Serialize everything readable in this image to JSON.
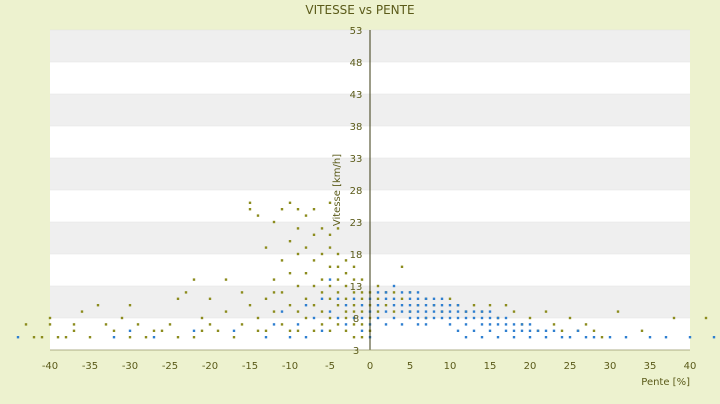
{
  "chart_data": {
    "type": "scatter",
    "title": "VITESSE vs PENTE",
    "xlabel": "Pente [%]",
    "ylabel": "Vitesse [km/h]",
    "xlim": [
      -40,
      40
    ],
    "ylim": [
      3,
      53
    ],
    "xticks": [
      -40,
      -35,
      -30,
      -25,
      -20,
      -15,
      -10,
      -5,
      0,
      5,
      10,
      15,
      20,
      25,
      30,
      35,
      40
    ],
    "yticks": [
      3,
      8,
      13,
      18,
      23,
      28,
      33,
      38,
      43,
      48,
      53
    ],
    "grid": true,
    "legend": "none",
    "colors": {
      "plot_band_light": "#ffffff",
      "plot_band_dark": "#efefef",
      "page_background": "#edf2cf",
      "text": "#5b5b1a",
      "series_olive": "#8c8c1e",
      "series_blue": "#2f7fd0"
    },
    "series": [
      {
        "color": "#8c8c1e",
        "points": [
          [
            -43,
            7
          ],
          [
            -42,
            5
          ],
          [
            -40,
            8
          ],
          [
            -40,
            7
          ],
          [
            -39,
            5
          ],
          [
            -38,
            5
          ],
          [
            -37,
            6
          ],
          [
            -37,
            7
          ],
          [
            -36,
            9
          ],
          [
            -35,
            5
          ],
          [
            -34,
            10
          ],
          [
            -33,
            7
          ],
          [
            -32,
            6
          ],
          [
            -31,
            8
          ],
          [
            -30,
            10
          ],
          [
            -29,
            7
          ],
          [
            -28,
            5
          ],
          [
            -27,
            6
          ],
          [
            -26,
            6
          ],
          [
            -25,
            7
          ],
          [
            -24,
            11
          ],
          [
            -24,
            5
          ],
          [
            -23,
            12
          ],
          [
            -22,
            14
          ],
          [
            -21,
            6
          ],
          [
            -21,
            8
          ],
          [
            -20,
            11
          ],
          [
            -20,
            7
          ],
          [
            -19,
            6
          ],
          [
            -18,
            14
          ],
          [
            -18,
            9
          ],
          [
            -17,
            5
          ],
          [
            -16,
            12
          ],
          [
            -16,
            7
          ],
          [
            -15,
            26
          ],
          [
            -15,
            10
          ],
          [
            -15,
            25
          ],
          [
            -14,
            24
          ],
          [
            -14,
            8
          ],
          [
            -13,
            19
          ],
          [
            -13,
            11
          ],
          [
            -13,
            6
          ],
          [
            -12,
            23
          ],
          [
            -12,
            14
          ],
          [
            -12,
            9
          ],
          [
            -11,
            25
          ],
          [
            -11,
            17
          ],
          [
            -11,
            12
          ],
          [
            -11,
            7
          ],
          [
            -10,
            26
          ],
          [
            -10,
            20
          ],
          [
            -10,
            15
          ],
          [
            -10,
            10
          ],
          [
            -10,
            6
          ],
          [
            -9,
            25
          ],
          [
            -9,
            22
          ],
          [
            -9,
            18
          ],
          [
            -9,
            13
          ],
          [
            -9,
            9
          ],
          [
            -9,
            6
          ],
          [
            -8,
            24
          ],
          [
            -8,
            19
          ],
          [
            -8,
            15
          ],
          [
            -8,
            11
          ],
          [
            -8,
            8
          ],
          [
            -7,
            25
          ],
          [
            -7,
            21
          ],
          [
            -7,
            17
          ],
          [
            -7,
            13
          ],
          [
            -7,
            10
          ],
          [
            -7,
            6
          ],
          [
            -6,
            22
          ],
          [
            -6,
            18
          ],
          [
            -6,
            14
          ],
          [
            -6,
            12
          ],
          [
            -6,
            9
          ],
          [
            -6,
            7
          ],
          [
            -5,
            26
          ],
          [
            -5,
            21
          ],
          [
            -5,
            19
          ],
          [
            -5,
            16
          ],
          [
            -5,
            13
          ],
          [
            -5,
            11
          ],
          [
            -5,
            8
          ],
          [
            -5,
            6
          ],
          [
            -4,
            22
          ],
          [
            -4,
            18
          ],
          [
            -4,
            16
          ],
          [
            -4,
            14
          ],
          [
            -4,
            12
          ],
          [
            -4,
            10
          ],
          [
            -4,
            7
          ],
          [
            -3,
            17
          ],
          [
            -3,
            15
          ],
          [
            -3,
            13
          ],
          [
            -3,
            11
          ],
          [
            -3,
            9
          ],
          [
            -3,
            8
          ],
          [
            -3,
            6
          ],
          [
            -2,
            16
          ],
          [
            -2,
            14
          ],
          [
            -2,
            12
          ],
          [
            -2,
            10
          ],
          [
            -2,
            9
          ],
          [
            -2,
            7
          ],
          [
            -2,
            5
          ],
          [
            -1,
            14
          ],
          [
            -1,
            12
          ],
          [
            -1,
            11
          ],
          [
            -1,
            9
          ],
          [
            -1,
            7
          ],
          [
            -1,
            5
          ],
          [
            0,
            12
          ],
          [
            0,
            10
          ],
          [
            0,
            8
          ],
          [
            0,
            6
          ],
          [
            1,
            13
          ],
          [
            1,
            11
          ],
          [
            1,
            9
          ],
          [
            2,
            12
          ],
          [
            2,
            10
          ],
          [
            3,
            12
          ],
          [
            3,
            9
          ],
          [
            4,
            11
          ],
          [
            4,
            16
          ],
          [
            5,
            12
          ],
          [
            5,
            9
          ],
          [
            6,
            10
          ],
          [
            7,
            11
          ],
          [
            7,
            8
          ],
          [
            8,
            10
          ],
          [
            9,
            9
          ],
          [
            10,
            11
          ],
          [
            11,
            10
          ],
          [
            12,
            9
          ],
          [
            13,
            10
          ],
          [
            14,
            9
          ],
          [
            15,
            10
          ],
          [
            16,
            8
          ],
          [
            17,
            10
          ],
          [
            18,
            9
          ],
          [
            19,
            7
          ],
          [
            20,
            8
          ],
          [
            21,
            6
          ],
          [
            22,
            9
          ],
          [
            23,
            7
          ],
          [
            24,
            6
          ],
          [
            25,
            8
          ],
          [
            26,
            6
          ],
          [
            27,
            7
          ],
          [
            28,
            6
          ],
          [
            29,
            5
          ],
          [
            31,
            9
          ],
          [
            34,
            6
          ],
          [
            38,
            8
          ],
          [
            42,
            8
          ],
          [
            -41,
            5
          ],
          [
            -30,
            5
          ],
          [
            -22,
            5
          ],
          [
            -14,
            6
          ],
          [
            -12,
            12
          ]
        ]
      },
      {
        "color": "#2f7fd0",
        "points": [
          [
            -44,
            5
          ],
          [
            -32,
            5
          ],
          [
            -30,
            6
          ],
          [
            -27,
            5
          ],
          [
            -22,
            6
          ],
          [
            -17,
            6
          ],
          [
            -13,
            5
          ],
          [
            -12,
            7
          ],
          [
            -11,
            9
          ],
          [
            -10,
            5
          ],
          [
            -9,
            7
          ],
          [
            -8,
            10
          ],
          [
            -8,
            5
          ],
          [
            -7,
            8
          ],
          [
            -6,
            11
          ],
          [
            -6,
            6
          ],
          [
            -5,
            9
          ],
          [
            -5,
            14
          ],
          [
            -4,
            8
          ],
          [
            -4,
            11
          ],
          [
            -3,
            7
          ],
          [
            -3,
            10
          ],
          [
            -2,
            8
          ],
          [
            -2,
            11
          ],
          [
            -1,
            6
          ],
          [
            -1,
            8
          ],
          [
            -1,
            10
          ],
          [
            0,
            5
          ],
          [
            0,
            7
          ],
          [
            0,
            9
          ],
          [
            0,
            11
          ],
          [
            1,
            8
          ],
          [
            1,
            10
          ],
          [
            1,
            12
          ],
          [
            2,
            7
          ],
          [
            2,
            9
          ],
          [
            2,
            11
          ],
          [
            2,
            12
          ],
          [
            3,
            8
          ],
          [
            3,
            10
          ],
          [
            3,
            11
          ],
          [
            3,
            13
          ],
          [
            4,
            7
          ],
          [
            4,
            9
          ],
          [
            4,
            10
          ],
          [
            4,
            12
          ],
          [
            5,
            8
          ],
          [
            5,
            9
          ],
          [
            5,
            10
          ],
          [
            5,
            11
          ],
          [
            5,
            12
          ],
          [
            6,
            7
          ],
          [
            6,
            8
          ],
          [
            6,
            9
          ],
          [
            6,
            10
          ],
          [
            6,
            11
          ],
          [
            6,
            12
          ],
          [
            7,
            7
          ],
          [
            7,
            8
          ],
          [
            7,
            9
          ],
          [
            7,
            10
          ],
          [
            7,
            11
          ],
          [
            8,
            8
          ],
          [
            8,
            9
          ],
          [
            8,
            10
          ],
          [
            8,
            11
          ],
          [
            9,
            8
          ],
          [
            9,
            9
          ],
          [
            9,
            10
          ],
          [
            9,
            11
          ],
          [
            10,
            7
          ],
          [
            10,
            8
          ],
          [
            10,
            9
          ],
          [
            10,
            10
          ],
          [
            11,
            6
          ],
          [
            11,
            8
          ],
          [
            11,
            9
          ],
          [
            11,
            10
          ],
          [
            12,
            5
          ],
          [
            12,
            7
          ],
          [
            12,
            8
          ],
          [
            12,
            9
          ],
          [
            13,
            6
          ],
          [
            13,
            8
          ],
          [
            13,
            9
          ],
          [
            14,
            5
          ],
          [
            14,
            7
          ],
          [
            14,
            8
          ],
          [
            14,
            9
          ],
          [
            15,
            6
          ],
          [
            15,
            7
          ],
          [
            15,
            8
          ],
          [
            15,
            9
          ],
          [
            16,
            5
          ],
          [
            16,
            7
          ],
          [
            16,
            8
          ],
          [
            17,
            6
          ],
          [
            17,
            7
          ],
          [
            17,
            8
          ],
          [
            18,
            5
          ],
          [
            18,
            6
          ],
          [
            18,
            7
          ],
          [
            19,
            6
          ],
          [
            19,
            7
          ],
          [
            20,
            5
          ],
          [
            20,
            6
          ],
          [
            20,
            7
          ],
          [
            21,
            6
          ],
          [
            22,
            5
          ],
          [
            22,
            6
          ],
          [
            23,
            6
          ],
          [
            24,
            5
          ],
          [
            25,
            5
          ],
          [
            26,
            6
          ],
          [
            27,
            5
          ],
          [
            28,
            5
          ],
          [
            30,
            5
          ],
          [
            32,
            5
          ],
          [
            35,
            5
          ],
          [
            37,
            5
          ],
          [
            40,
            5
          ],
          [
            43,
            5
          ]
        ]
      }
    ]
  }
}
